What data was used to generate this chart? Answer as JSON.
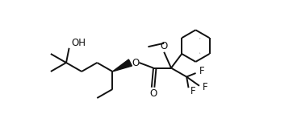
{
  "bg_color": "#ffffff",
  "line_color": "#111111",
  "line_width": 1.4,
  "font_size": 8.5,
  "fig_width": 3.63,
  "fig_height": 1.73,
  "dpi": 100,
  "xlim": [
    0,
    363
  ],
  "ylim": [
    0,
    173
  ]
}
